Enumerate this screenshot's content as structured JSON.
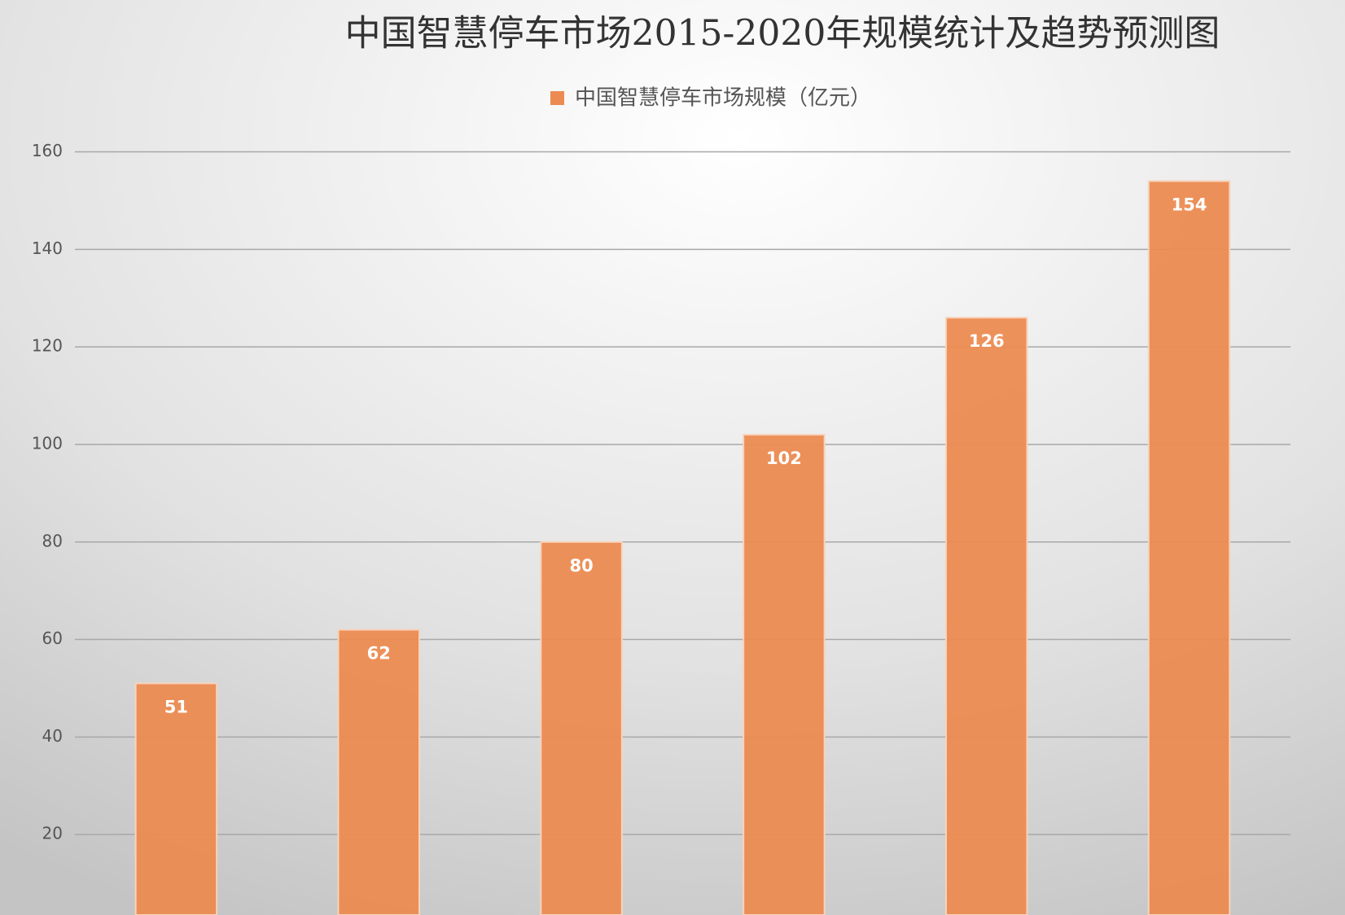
{
  "chart_data": {
    "type": "bar",
    "title": "中国智慧停车市场2015-2020年规模统计及趋势预测图",
    "categories": [
      null,
      null,
      null,
      null,
      null,
      null
    ],
    "series": [
      {
        "name": "中国智慧停车市场规模（亿元）",
        "color": "#ec8b51",
        "values": [
          51,
          62,
          80,
          102,
          126,
          154
        ]
      }
    ],
    "ylim": [
      3.5,
      165
    ],
    "yticks": [
      20,
      40,
      60,
      80,
      100,
      120,
      140,
      160
    ],
    "grid": true,
    "legend": "top"
  }
}
